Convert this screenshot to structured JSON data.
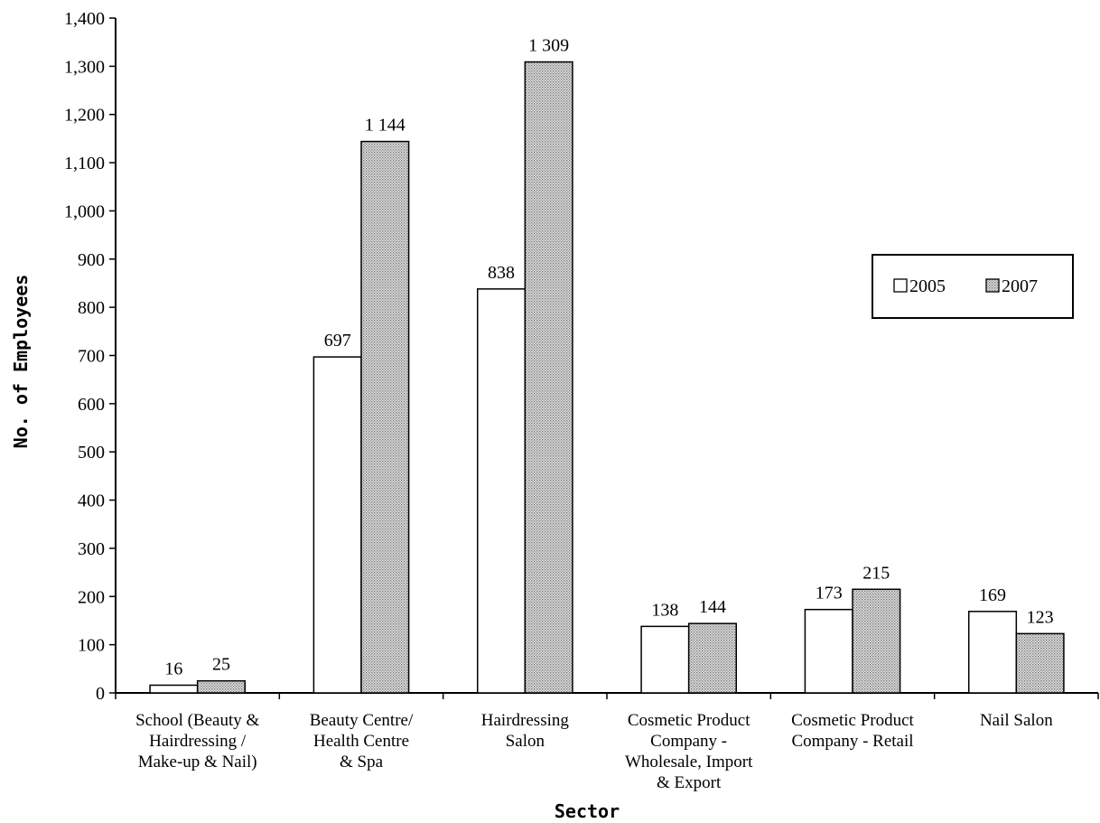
{
  "chart_data": {
    "type": "bar",
    "categories": [
      [
        "School (Beauty &",
        "Hairdressing /",
        "Make-up & Nail)"
      ],
      [
        "Beauty Centre/",
        "Health Centre",
        "& Spa"
      ],
      [
        "Hairdressing",
        "Salon"
      ],
      [
        "Cosmetic Product",
        "Company -",
        "Wholesale, Import",
        "& Export"
      ],
      [
        "Cosmetic Product",
        "Company - Retail"
      ],
      [
        "Nail Salon"
      ]
    ],
    "series": [
      {
        "name": "2005",
        "values": [
          16,
          697,
          838,
          138,
          173,
          169
        ],
        "labels": [
          "16",
          "697",
          "838",
          "138",
          "173",
          "169"
        ],
        "fill": "#ffffff"
      },
      {
        "name": "2007",
        "values": [
          25,
          1144,
          1309,
          144,
          215,
          123
        ],
        "labels": [
          "25",
          "1 144",
          "1 309",
          "144",
          "215",
          "123"
        ],
        "fill": "#c8c8c8"
      }
    ],
    "xlabel": "Sector",
    "ylabel": "No. of Employees",
    "ylim": [
      0,
      1400
    ],
    "yticks": [
      0,
      100,
      200,
      300,
      400,
      500,
      600,
      700,
      800,
      900,
      1000,
      1100,
      1200,
      1300,
      1400
    ],
    "ytick_labels": [
      "0",
      "100",
      "200",
      "300",
      "400",
      "500",
      "600",
      "700",
      "800",
      "900",
      "1,000",
      "1,100",
      "1,200",
      "1,300",
      "1,400"
    ],
    "grid": false,
    "legend_position": "right"
  }
}
